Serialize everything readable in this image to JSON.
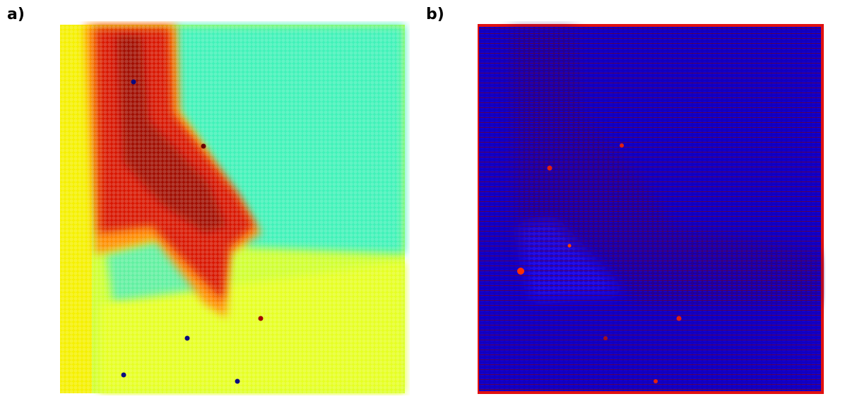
{
  "panels": [
    {
      "label": "a)",
      "colors": {
        "background": "#d8ff2a",
        "hot": "#d01000",
        "cyan": "#33f0c0",
        "yellow": "#f4f000",
        "dot": "#0a0a80"
      }
    },
    {
      "label": "b)",
      "colors": {
        "background": "#1a00c8",
        "grid_blue": "#0a00b0",
        "edge_red": "#e01010",
        "dark_band": "#3a0060"
      }
    }
  ]
}
